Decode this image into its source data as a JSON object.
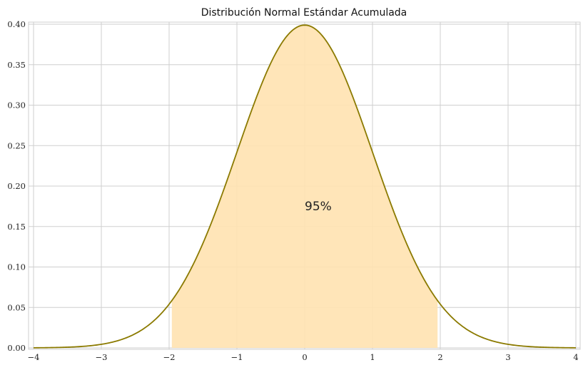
{
  "chart_data": {
    "type": "area",
    "title": "Distribución Normal Estándar Acumulada",
    "xlabel": "",
    "ylabel": "",
    "xlim": [
      -4,
      4
    ],
    "ylim": [
      0,
      0.4
    ],
    "grid": true,
    "x_ticks": [
      -4,
      -3,
      -2,
      -1,
      0,
      1,
      2,
      3,
      4
    ],
    "x_tick_labels": [
      "−4",
      "−3",
      "−2",
      "−1",
      "0",
      "1",
      "2",
      "3",
      "4"
    ],
    "y_ticks": [
      0,
      0.05,
      0.1,
      0.15,
      0.2,
      0.25,
      0.3,
      0.35,
      0.4
    ],
    "y_tick_labels": [
      "0.00",
      "0.05",
      "0.10",
      "0.15",
      "0.20",
      "0.25",
      "0.30",
      "0.35",
      "0.40"
    ],
    "series": [
      {
        "kind": "line",
        "function": "standard-normal-pdf",
        "mean": 0,
        "sd": 1,
        "color": "#8b7a00"
      }
    ],
    "shaded_region": {
      "x_from": -1.96,
      "x_to": 1.96,
      "fill": "#ffe2b0"
    },
    "annotation": {
      "text": "95%",
      "x": 0,
      "y": 0.17
    }
  }
}
